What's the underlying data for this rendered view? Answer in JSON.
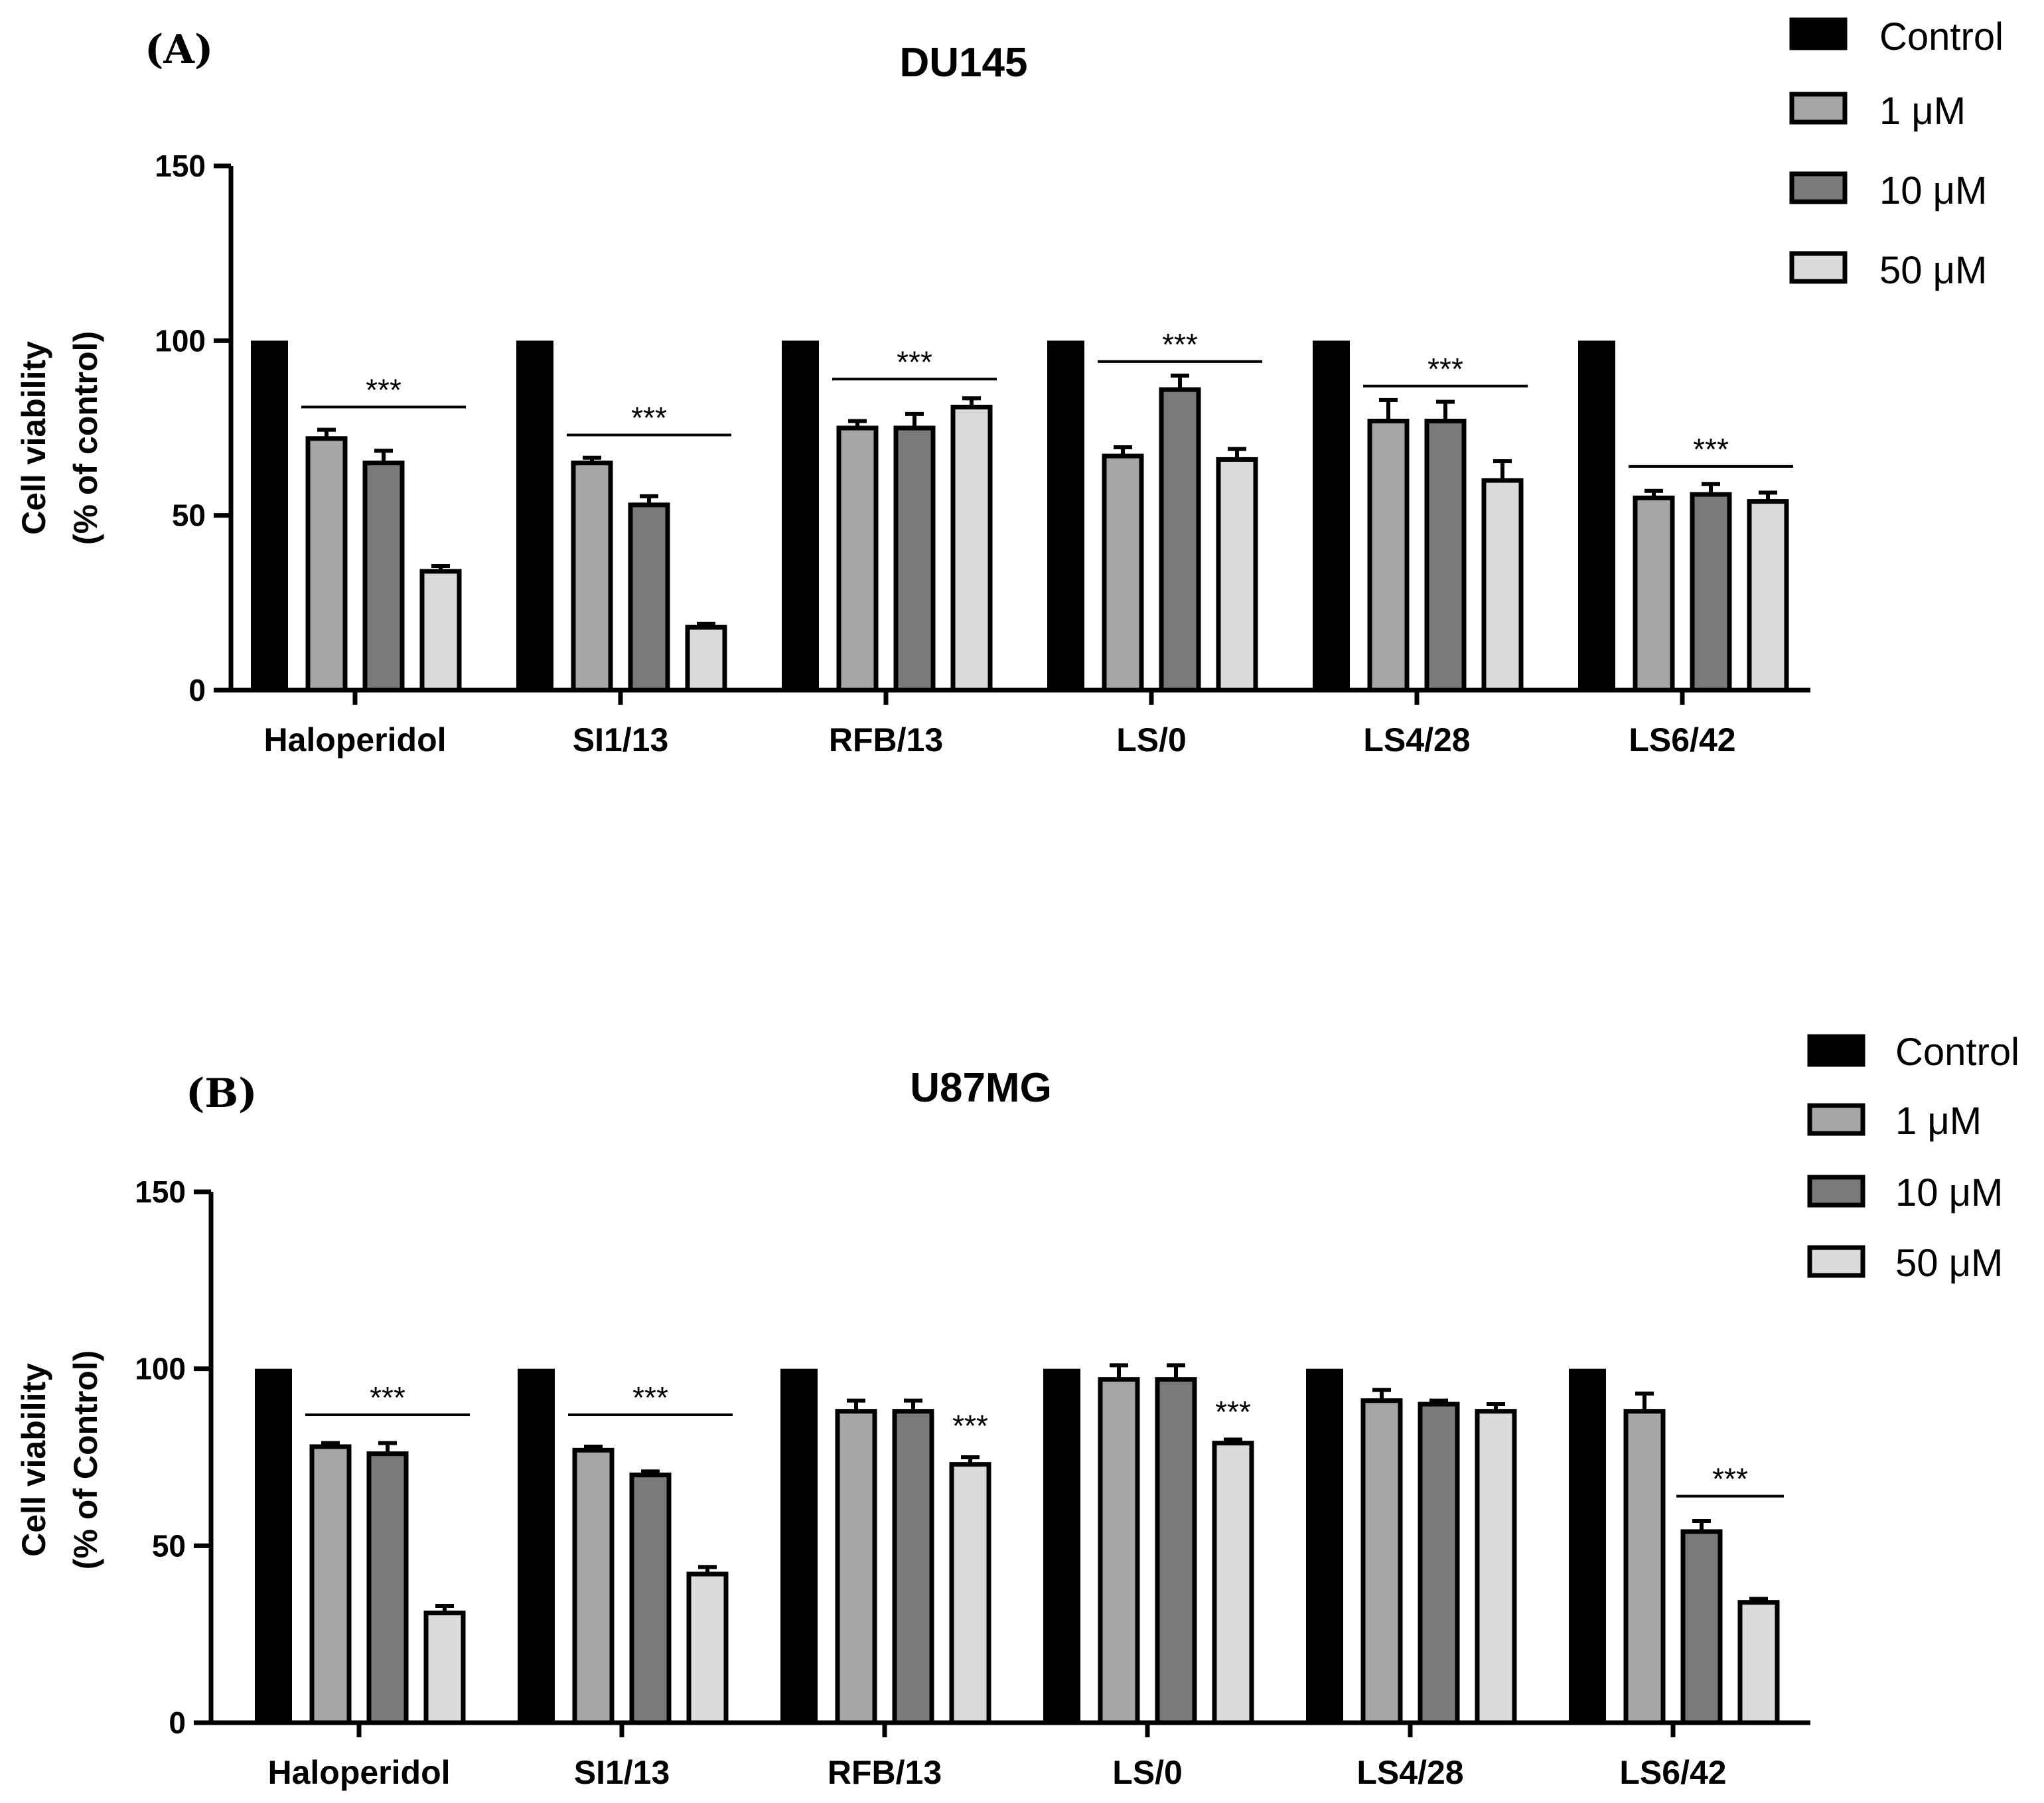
{
  "chart_data": [
    {
      "type": "bar",
      "panel": "(A)",
      "title": "DU145",
      "ylabel": [
        "Cell viability",
        "(% of control)"
      ],
      "xlabel": "",
      "ylim": [
        0,
        150
      ],
      "yticks": [
        0,
        50,
        100,
        150
      ],
      "categories": [
        "Haloperidol",
        "SI1/13",
        "RFB/13",
        "LS/0",
        "LS4/28",
        "LS6/42"
      ],
      "series": [
        {
          "name": "Control",
          "color": "#000000",
          "values": [
            100,
            100,
            100,
            100,
            100,
            100
          ],
          "errors": [
            0,
            0,
            0,
            0,
            0,
            0
          ]
        },
        {
          "name": "1 μM",
          "color": "#a6a6a8",
          "values": [
            72,
            65,
            75,
            67,
            77,
            55
          ],
          "errors": [
            2.5,
            1.5,
            2,
            2.5,
            6,
            2
          ]
        },
        {
          "name": "10 μM",
          "color": "#7a7a7c",
          "values": [
            65,
            53,
            75,
            86,
            77,
            56
          ],
          "errors": [
            3.5,
            2.5,
            4,
            4,
            5.5,
            3
          ]
        },
        {
          "name": "50 μM",
          "color": "#dadadc",
          "values": [
            34,
            18,
            81,
            66,
            60,
            54
          ],
          "errors": [
            1.5,
            1,
            2.5,
            3,
            5.5,
            2.5
          ]
        }
      ],
      "significance": [
        {
          "category": "Haloperidol",
          "span": "bracket",
          "level": 81,
          "label": "***"
        },
        {
          "category": "SI1/13",
          "span": "bracket",
          "level": 73,
          "label": "***"
        },
        {
          "category": "RFB/13",
          "span": "bracket",
          "level": 89,
          "label": "***"
        },
        {
          "category": "LS/0",
          "span": "bracket",
          "level": 94,
          "label": "***"
        },
        {
          "category": "LS4/28",
          "span": "bracket",
          "level": 87,
          "label": "***"
        },
        {
          "category": "LS6/42",
          "span": "bracket",
          "level": 64,
          "label": "***"
        }
      ],
      "legend": [
        "Control",
        "1 μM",
        "10 μM",
        "50 μM"
      ],
      "legend_position": "top-right"
    },
    {
      "type": "bar",
      "panel": "(B)",
      "title": "U87MG",
      "ylabel": [
        "Cell viability",
        "(% of Control)"
      ],
      "xlabel": "",
      "ylim": [
        0,
        150
      ],
      "yticks": [
        0,
        50,
        100,
        150
      ],
      "categories": [
        "Haloperidol",
        "SI1/13",
        "RFB/13",
        "LS/0",
        "LS4/28",
        "LS6/42"
      ],
      "series": [
        {
          "name": "Control",
          "color": "#000000",
          "values": [
            100,
            100,
            100,
            100,
            100,
            100
          ],
          "errors": [
            0,
            0,
            0,
            0,
            0,
            0
          ]
        },
        {
          "name": "1 μM",
          "color": "#a6a6a8",
          "values": [
            78,
            77,
            88,
            97,
            91,
            88
          ],
          "errors": [
            1,
            1,
            3,
            4,
            3,
            5
          ]
        },
        {
          "name": "10 μM",
          "color": "#7a7a7c",
          "values": [
            76,
            70,
            88,
            97,
            90,
            54
          ],
          "errors": [
            3,
            1,
            3,
            4,
            1,
            3
          ]
        },
        {
          "name": "50 μM",
          "color": "#dadadc",
          "values": [
            31,
            42,
            73,
            79,
            88,
            34
          ],
          "errors": [
            2,
            2,
            2,
            1,
            2,
            1
          ]
        }
      ],
      "significance": [
        {
          "category": "Haloperidol",
          "span": "bracket",
          "level": 87,
          "label": "***"
        },
        {
          "category": "SI1/13",
          "span": "bracket",
          "level": 87,
          "label": "***"
        },
        {
          "category": "RFB/13",
          "span": "bar4",
          "level": 79,
          "label": "***"
        },
        {
          "category": "LS/0",
          "span": "bar4",
          "level": 83,
          "label": "***"
        },
        {
          "category": "LS6/42",
          "span": "bracket34",
          "level": 64,
          "label": "***"
        }
      ],
      "legend": [
        "Control",
        "1 μM",
        "10 μM",
        "50 μM"
      ],
      "legend_position": "top-right"
    }
  ]
}
